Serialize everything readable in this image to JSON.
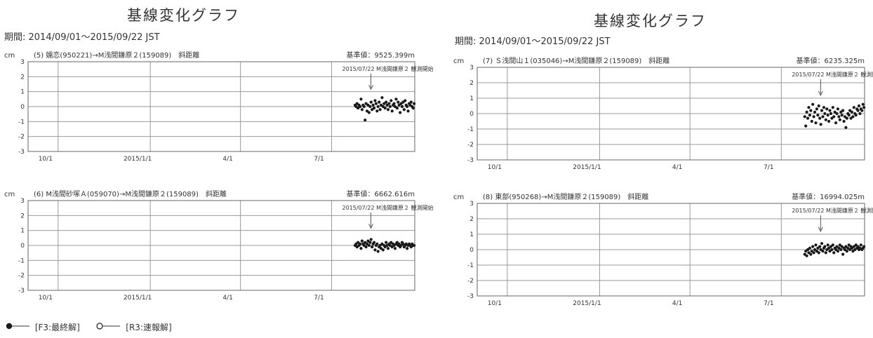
{
  "left_panel": {
    "title": "基線変化グラフ",
    "period": "期間: 2014/09/01～2015/09/22 JST"
  },
  "right_panel": {
    "title": "基線変化グラフ",
    "period": "期間: 2014/09/01～2015/09/22 JST"
  },
  "legend": {
    "final_label": "[F3:最終解]",
    "rapid_label": "[R3:速報解]"
  },
  "colors": {
    "points": "#1a1a1a",
    "grid": "#9a9a9a",
    "frame": "#666666"
  },
  "chart_data": [
    {
      "type": "scatter",
      "title": "(5) 嬬恋(950221)→M浅間鎌原２(159089)　斜距離",
      "base_value": "基準値：9525.399m",
      "unit": "cm",
      "annotation": "2015/07/22 M浅間鎌原２ 観測開始",
      "annotation_date": "2015-07-22",
      "x_start": "2014-09-01",
      "x_end": "2015-09-22",
      "x_ticks": [
        {
          "date": "2014-10-01",
          "label": "10/1"
        },
        {
          "date": "2015-01-01",
          "label": "2015/1/1"
        },
        {
          "date": "2015-04-01",
          "label": "4/1"
        },
        {
          "date": "2015-07-01",
          "label": "7/1"
        }
      ],
      "ylim": [
        -3,
        3
      ],
      "y_ticks": [
        3,
        2,
        1,
        0,
        -1,
        -2,
        -3
      ],
      "grid": true,
      "series": [
        {
          "x": [
            "2015-07-23",
            "2015-07-24",
            "2015-07-25",
            "2015-07-26",
            "2015-07-27",
            "2015-07-28",
            "2015-07-29",
            "2015-07-30",
            "2015-07-31",
            "2015-08-01",
            "2015-08-02",
            "2015-08-03",
            "2015-08-04",
            "2015-08-05",
            "2015-08-06",
            "2015-08-07",
            "2015-08-08",
            "2015-08-09",
            "2015-08-10",
            "2015-08-11",
            "2015-08-12",
            "2015-08-13",
            "2015-08-14",
            "2015-08-15",
            "2015-08-16",
            "2015-08-17",
            "2015-08-18",
            "2015-08-19",
            "2015-08-20",
            "2015-08-21",
            "2015-08-22",
            "2015-08-23",
            "2015-08-24",
            "2015-08-25",
            "2015-08-26",
            "2015-08-27",
            "2015-08-28",
            "2015-08-29",
            "2015-08-30",
            "2015-08-31",
            "2015-09-01",
            "2015-09-02",
            "2015-09-03",
            "2015-09-04",
            "2015-09-05",
            "2015-09-06",
            "2015-09-07",
            "2015-09-08",
            "2015-09-09",
            "2015-09-10",
            "2015-09-11",
            "2015-09-12",
            "2015-09-13",
            "2015-09-14",
            "2015-09-15",
            "2015-09-16",
            "2015-09-17",
            "2015-09-18",
            "2015-09-19",
            "2015-09-20"
          ],
          "y": [
            0.1,
            0.0,
            0.2,
            -0.1,
            0.1,
            0.0,
            0.5,
            -0.2,
            0.1,
            0.0,
            -0.9,
            0.2,
            -0.3,
            0.1,
            -0.4,
            0.0,
            0.3,
            -0.2,
            0.1,
            -0.1,
            0.4,
            0.2,
            -0.3,
            0.0,
            0.3,
            -0.2,
            0.1,
            0.6,
            0.0,
            0.2,
            -0.1,
            0.3,
            0.1,
            -0.2,
            0.2,
            0.0,
            0.4,
            -0.3,
            0.1,
            0.2,
            0.0,
            0.5,
            -0.1,
            0.3,
            0.1,
            -0.4,
            0.2,
            0.0,
            0.3,
            -0.2,
            0.4,
            0.1,
            0.0,
            -0.3,
            0.2,
            0.1,
            0.3,
            0.0,
            -0.1,
            0.2
          ]
        }
      ]
    },
    {
      "type": "scatter",
      "title": "(6) M浅間砂塚Ａ(059070)→M浅間鎌原２(159089)　斜距離",
      "base_value": "基準値：6662.616m",
      "unit": "cm",
      "annotation": "2015/07/22 M浅間鎌原２ 観測開始",
      "annotation_date": "2015-07-22",
      "x_start": "2014-09-01",
      "x_end": "2015-09-22",
      "x_ticks": [
        {
          "date": "2014-10-01",
          "label": "10/1"
        },
        {
          "date": "2015-01-01",
          "label": "2015/1/1"
        },
        {
          "date": "2015-04-01",
          "label": "4/1"
        },
        {
          "date": "2015-07-01",
          "label": "7/1"
        }
      ],
      "ylim": [
        -3,
        3
      ],
      "y_ticks": [
        3,
        2,
        1,
        0,
        -1,
        -2,
        -3
      ],
      "grid": true,
      "series": [
        {
          "x": [
            "2015-07-23",
            "2015-07-24",
            "2015-07-25",
            "2015-07-26",
            "2015-07-27",
            "2015-07-28",
            "2015-07-29",
            "2015-07-30",
            "2015-07-31",
            "2015-08-01",
            "2015-08-02",
            "2015-08-03",
            "2015-08-04",
            "2015-08-05",
            "2015-08-06",
            "2015-08-07",
            "2015-08-08",
            "2015-08-09",
            "2015-08-10",
            "2015-08-11",
            "2015-08-12",
            "2015-08-13",
            "2015-08-14",
            "2015-08-15",
            "2015-08-16",
            "2015-08-17",
            "2015-08-18",
            "2015-08-19",
            "2015-08-20",
            "2015-08-21",
            "2015-08-22",
            "2015-08-23",
            "2015-08-24",
            "2015-08-25",
            "2015-08-26",
            "2015-08-27",
            "2015-08-28",
            "2015-08-29",
            "2015-08-30",
            "2015-08-31",
            "2015-09-01",
            "2015-09-02",
            "2015-09-03",
            "2015-09-04",
            "2015-09-05",
            "2015-09-06",
            "2015-09-07",
            "2015-09-08",
            "2015-09-09",
            "2015-09-10",
            "2015-09-11",
            "2015-09-12",
            "2015-09-13",
            "2015-09-14",
            "2015-09-15",
            "2015-09-16",
            "2015-09-17",
            "2015-09-18",
            "2015-09-19",
            "2015-09-20"
          ],
          "y": [
            0.0,
            0.1,
            -0.1,
            0.2,
            0.0,
            0.1,
            -0.2,
            0.3,
            0.1,
            0.0,
            0.2,
            -0.1,
            0.1,
            0.3,
            0.0,
            0.2,
            0.4,
            -0.1,
            0.1,
            0.2,
            -0.3,
            0.0,
            0.1,
            -0.4,
            -0.1,
            0.0,
            -0.2,
            0.1,
            -0.3,
            0.0,
            -0.1,
            0.2,
            0.0,
            -0.2,
            0.1,
            0.0,
            0.2,
            -0.1,
            0.1,
            0.0,
            -0.2,
            0.1,
            0.2,
            0.0,
            0.1,
            -0.1,
            0.0,
            0.2,
            0.1,
            -0.1,
            0.0,
            0.1,
            -0.2,
            0.0,
            0.1,
            0.0,
            -0.1,
            0.1,
            0.0,
            0.0
          ]
        }
      ]
    },
    {
      "type": "scatter",
      "title": "(7) Ｓ浅間山１(035046)→M浅間鎌原２(159089)　斜距離",
      "base_value": "基準値：6235.325m",
      "unit": "cm",
      "annotation": "2015/07/22 M浅間鎌原２ 観測開始",
      "annotation_date": "2015-07-22",
      "x_start": "2014-09-01",
      "x_end": "2015-09-22",
      "x_ticks": [
        {
          "date": "2014-10-01",
          "label": "10/1"
        },
        {
          "date": "2015-01-01",
          "label": "2015/1/1"
        },
        {
          "date": "2015-04-01",
          "label": "4/1"
        },
        {
          "date": "2015-07-01",
          "label": "7/1"
        }
      ],
      "ylim": [
        -3,
        3
      ],
      "y_ticks": [
        3,
        2,
        1,
        0,
        -1,
        -2,
        -3
      ],
      "grid": true,
      "series": [
        {
          "x": [
            "2015-07-23",
            "2015-07-24",
            "2015-07-25",
            "2015-07-26",
            "2015-07-27",
            "2015-07-28",
            "2015-07-29",
            "2015-07-30",
            "2015-07-31",
            "2015-08-01",
            "2015-08-02",
            "2015-08-03",
            "2015-08-04",
            "2015-08-05",
            "2015-08-06",
            "2015-08-07",
            "2015-08-08",
            "2015-08-09",
            "2015-08-10",
            "2015-08-11",
            "2015-08-12",
            "2015-08-13",
            "2015-08-14",
            "2015-08-15",
            "2015-08-16",
            "2015-08-17",
            "2015-08-18",
            "2015-08-19",
            "2015-08-20",
            "2015-08-21",
            "2015-08-22",
            "2015-08-23",
            "2015-08-24",
            "2015-08-25",
            "2015-08-26",
            "2015-08-27",
            "2015-08-28",
            "2015-08-29",
            "2015-08-30",
            "2015-08-31",
            "2015-09-01",
            "2015-09-02",
            "2015-09-03",
            "2015-09-04",
            "2015-09-05",
            "2015-09-06",
            "2015-09-07",
            "2015-09-08",
            "2015-09-09",
            "2015-09-10",
            "2015-09-11",
            "2015-09-12",
            "2015-09-13",
            "2015-09-14",
            "2015-09-15",
            "2015-09-16",
            "2015-09-17",
            "2015-09-18",
            "2015-09-19",
            "2015-09-20"
          ],
          "y": [
            -0.2,
            -0.8,
            0.1,
            -0.3,
            0.4,
            -0.1,
            0.2,
            -0.5,
            0.6,
            -0.2,
            0.1,
            -0.6,
            0.3,
            -0.1,
            0.5,
            -0.3,
            -0.7,
            0.2,
            -0.2,
            0.4,
            0.0,
            -0.4,
            0.3,
            -0.1,
            -0.5,
            0.2,
            0.0,
            -0.3,
            0.4,
            -0.2,
            0.1,
            -0.6,
            0.0,
            0.3,
            -0.2,
            -0.4,
            0.1,
            -0.1,
            0.2,
            -0.5,
            -0.2,
            -0.9,
            -0.3,
            0.0,
            -0.1,
            0.2,
            -0.3,
            0.1,
            -0.2,
            0.4,
            0.0,
            -0.1,
            0.3,
            0.2,
            0.5,
            0.0,
            0.3,
            0.2,
            0.6,
            0.4
          ]
        }
      ]
    },
    {
      "type": "scatter",
      "title": "(8) 東部(950268)→M浅間鎌原２(159089)　斜距離",
      "base_value": "基準値：16994.025m",
      "unit": "cm",
      "annotation": "2015/07/22 M浅間鎌原２ 観測開始",
      "annotation_date": "2015-07-22",
      "x_start": "2014-09-01",
      "x_end": "2015-09-22",
      "x_ticks": [
        {
          "date": "2014-10-01",
          "label": "10/1"
        },
        {
          "date": "2015-01-01",
          "label": "2015/1/1"
        },
        {
          "date": "2015-04-01",
          "label": "4/1"
        },
        {
          "date": "2015-07-01",
          "label": "7/1"
        }
      ],
      "ylim": [
        -3,
        3
      ],
      "y_ticks": [
        3,
        2,
        1,
        0,
        -1,
        -2,
        -3
      ],
      "grid": true,
      "series": [
        {
          "x": [
            "2015-07-23",
            "2015-07-24",
            "2015-07-25",
            "2015-07-26",
            "2015-07-27",
            "2015-07-28",
            "2015-07-29",
            "2015-07-30",
            "2015-07-31",
            "2015-08-01",
            "2015-08-02",
            "2015-08-03",
            "2015-08-04",
            "2015-08-05",
            "2015-08-06",
            "2015-08-07",
            "2015-08-08",
            "2015-08-09",
            "2015-08-10",
            "2015-08-11",
            "2015-08-12",
            "2015-08-13",
            "2015-08-14",
            "2015-08-15",
            "2015-08-16",
            "2015-08-17",
            "2015-08-18",
            "2015-08-19",
            "2015-08-20",
            "2015-08-21",
            "2015-08-22",
            "2015-08-23",
            "2015-08-24",
            "2015-08-25",
            "2015-08-26",
            "2015-08-27",
            "2015-08-28",
            "2015-08-29",
            "2015-08-30",
            "2015-08-31",
            "2015-09-01",
            "2015-09-02",
            "2015-09-03",
            "2015-09-04",
            "2015-09-05",
            "2015-09-06",
            "2015-09-07",
            "2015-09-08",
            "2015-09-09",
            "2015-09-10",
            "2015-09-11",
            "2015-09-12",
            "2015-09-13",
            "2015-09-14",
            "2015-09-15",
            "2015-09-16",
            "2015-09-17",
            "2015-09-18",
            "2015-09-19",
            "2015-09-20"
          ],
          "y": [
            -0.3,
            -0.1,
            -0.4,
            0.0,
            -0.2,
            0.1,
            -0.3,
            -0.1,
            0.2,
            -0.2,
            0.0,
            0.3,
            -0.1,
            0.1,
            -0.2,
            0.2,
            0.0,
            0.4,
            -0.1,
            0.1,
            0.2,
            -0.2,
            0.0,
            0.3,
            0.1,
            -0.1,
            0.2,
            0.0,
            0.3,
            -0.2,
            0.1,
            0.0,
            0.2,
            -0.1,
            0.1,
            0.3,
            0.0,
            0.2,
            -0.3,
            0.1,
            0.0,
            0.2,
            -0.1,
            0.1,
            0.3,
            0.0,
            0.2,
            0.1,
            -0.1,
            0.2,
            0.0,
            0.3,
            0.1,
            0.2,
            0.0,
            0.1,
            0.3,
            0.0,
            0.1,
            0.2
          ]
        }
      ]
    }
  ]
}
